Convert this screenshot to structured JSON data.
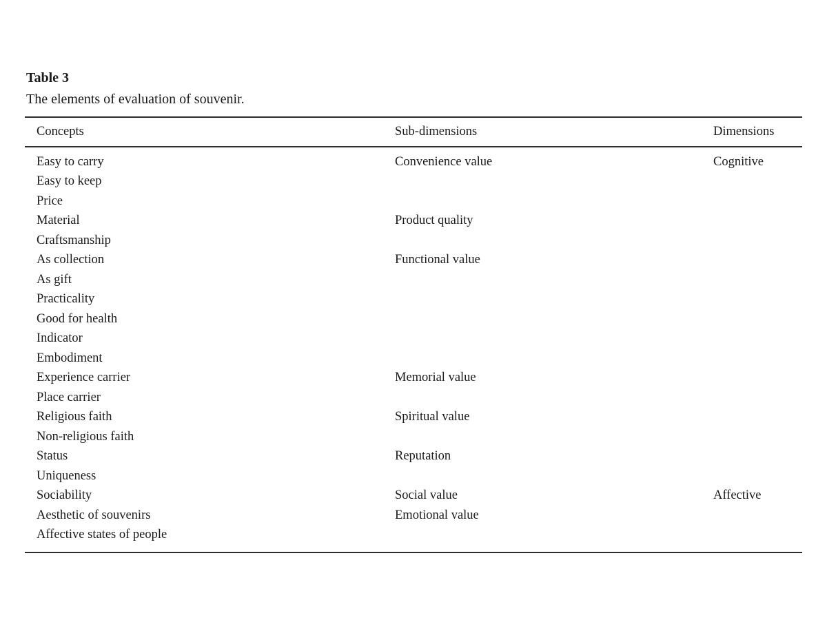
{
  "colors": {
    "background": "#ffffff",
    "text": "#1b1b1b",
    "rule": "#2d2d2d"
  },
  "table": {
    "label": "Table 3",
    "caption": "The elements of evaluation of souvenir.",
    "columns": [
      "Concepts",
      "Sub-dimensions",
      "Dimensions"
    ],
    "rows": [
      {
        "concept": "Easy to carry",
        "sub_dimension": "Convenience value",
        "dimension": "Cognitive"
      },
      {
        "concept": "Easy to keep",
        "sub_dimension": "",
        "dimension": ""
      },
      {
        "concept": "Price",
        "sub_dimension": "",
        "dimension": ""
      },
      {
        "concept": "Material",
        "sub_dimension": "Product quality",
        "dimension": ""
      },
      {
        "concept": "Craftsmanship",
        "sub_dimension": "",
        "dimension": ""
      },
      {
        "concept": "As collection",
        "sub_dimension": "Functional value",
        "dimension": ""
      },
      {
        "concept": "As gift",
        "sub_dimension": "",
        "dimension": ""
      },
      {
        "concept": "Practicality",
        "sub_dimension": "",
        "dimension": ""
      },
      {
        "concept": "Good for health",
        "sub_dimension": "",
        "dimension": ""
      },
      {
        "concept": "Indicator",
        "sub_dimension": "",
        "dimension": ""
      },
      {
        "concept": "Embodiment",
        "sub_dimension": "",
        "dimension": ""
      },
      {
        "concept": "Experience carrier",
        "sub_dimension": "Memorial value",
        "dimension": ""
      },
      {
        "concept": "Place carrier",
        "sub_dimension": "",
        "dimension": ""
      },
      {
        "concept": "Religious faith",
        "sub_dimension": "Spiritual value",
        "dimension": ""
      },
      {
        "concept": "Non-religious faith",
        "sub_dimension": "",
        "dimension": ""
      },
      {
        "concept": "Status",
        "sub_dimension": "Reputation",
        "dimension": ""
      },
      {
        "concept": "Uniqueness",
        "sub_dimension": "",
        "dimension": ""
      },
      {
        "concept": "Sociability",
        "sub_dimension": "Social value",
        "dimension": "Affective"
      },
      {
        "concept": "Aesthetic of souvenirs",
        "sub_dimension": "Emotional value",
        "dimension": ""
      },
      {
        "concept": "Affective states of people",
        "sub_dimension": "",
        "dimension": ""
      }
    ]
  }
}
